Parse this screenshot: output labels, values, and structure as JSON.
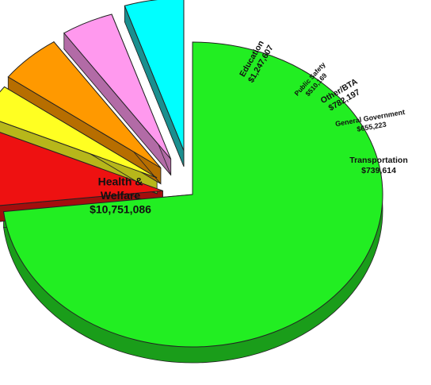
{
  "chart_data": {
    "type": "pie",
    "title": "",
    "slices": [
      {
        "category": "Health & Welfare",
        "label_lines": [
          "Health &",
          "Welfare"
        ],
        "amount_text": "$10,751,086",
        "value": 10751086,
        "color": "#22ee22",
        "side": "#1a9d1a"
      },
      {
        "category": "Education",
        "label_lines": [
          "Education"
        ],
        "amount_text": "$1,247,607",
        "value": 1247607,
        "color": "#ee1111",
        "side": "#a30e0e"
      },
      {
        "category": "Public Safety",
        "label_lines": [
          "Public Safety"
        ],
        "amount_text": "$510,169",
        "value": 510169,
        "color": "#ffff22",
        "side": "#b7b71a"
      },
      {
        "category": "Other/BTA",
        "label_lines": [
          "Other/BTA"
        ],
        "amount_text": "$782,197",
        "value": 782197,
        "color": "#ff9900",
        "side": "#b76e00"
      },
      {
        "category": "General Government",
        "label_lines": [
          "General Government"
        ],
        "amount_text": "$655,223",
        "value": 655223,
        "color": "#ff99ee",
        "side": "#b26ba6"
      },
      {
        "category": "Transportation",
        "label_lines": [
          "Transportation"
        ],
        "amount_text": "$739,614",
        "value": 739614,
        "color": "#00ffff",
        "side": "#1a8f8f"
      }
    ]
  }
}
